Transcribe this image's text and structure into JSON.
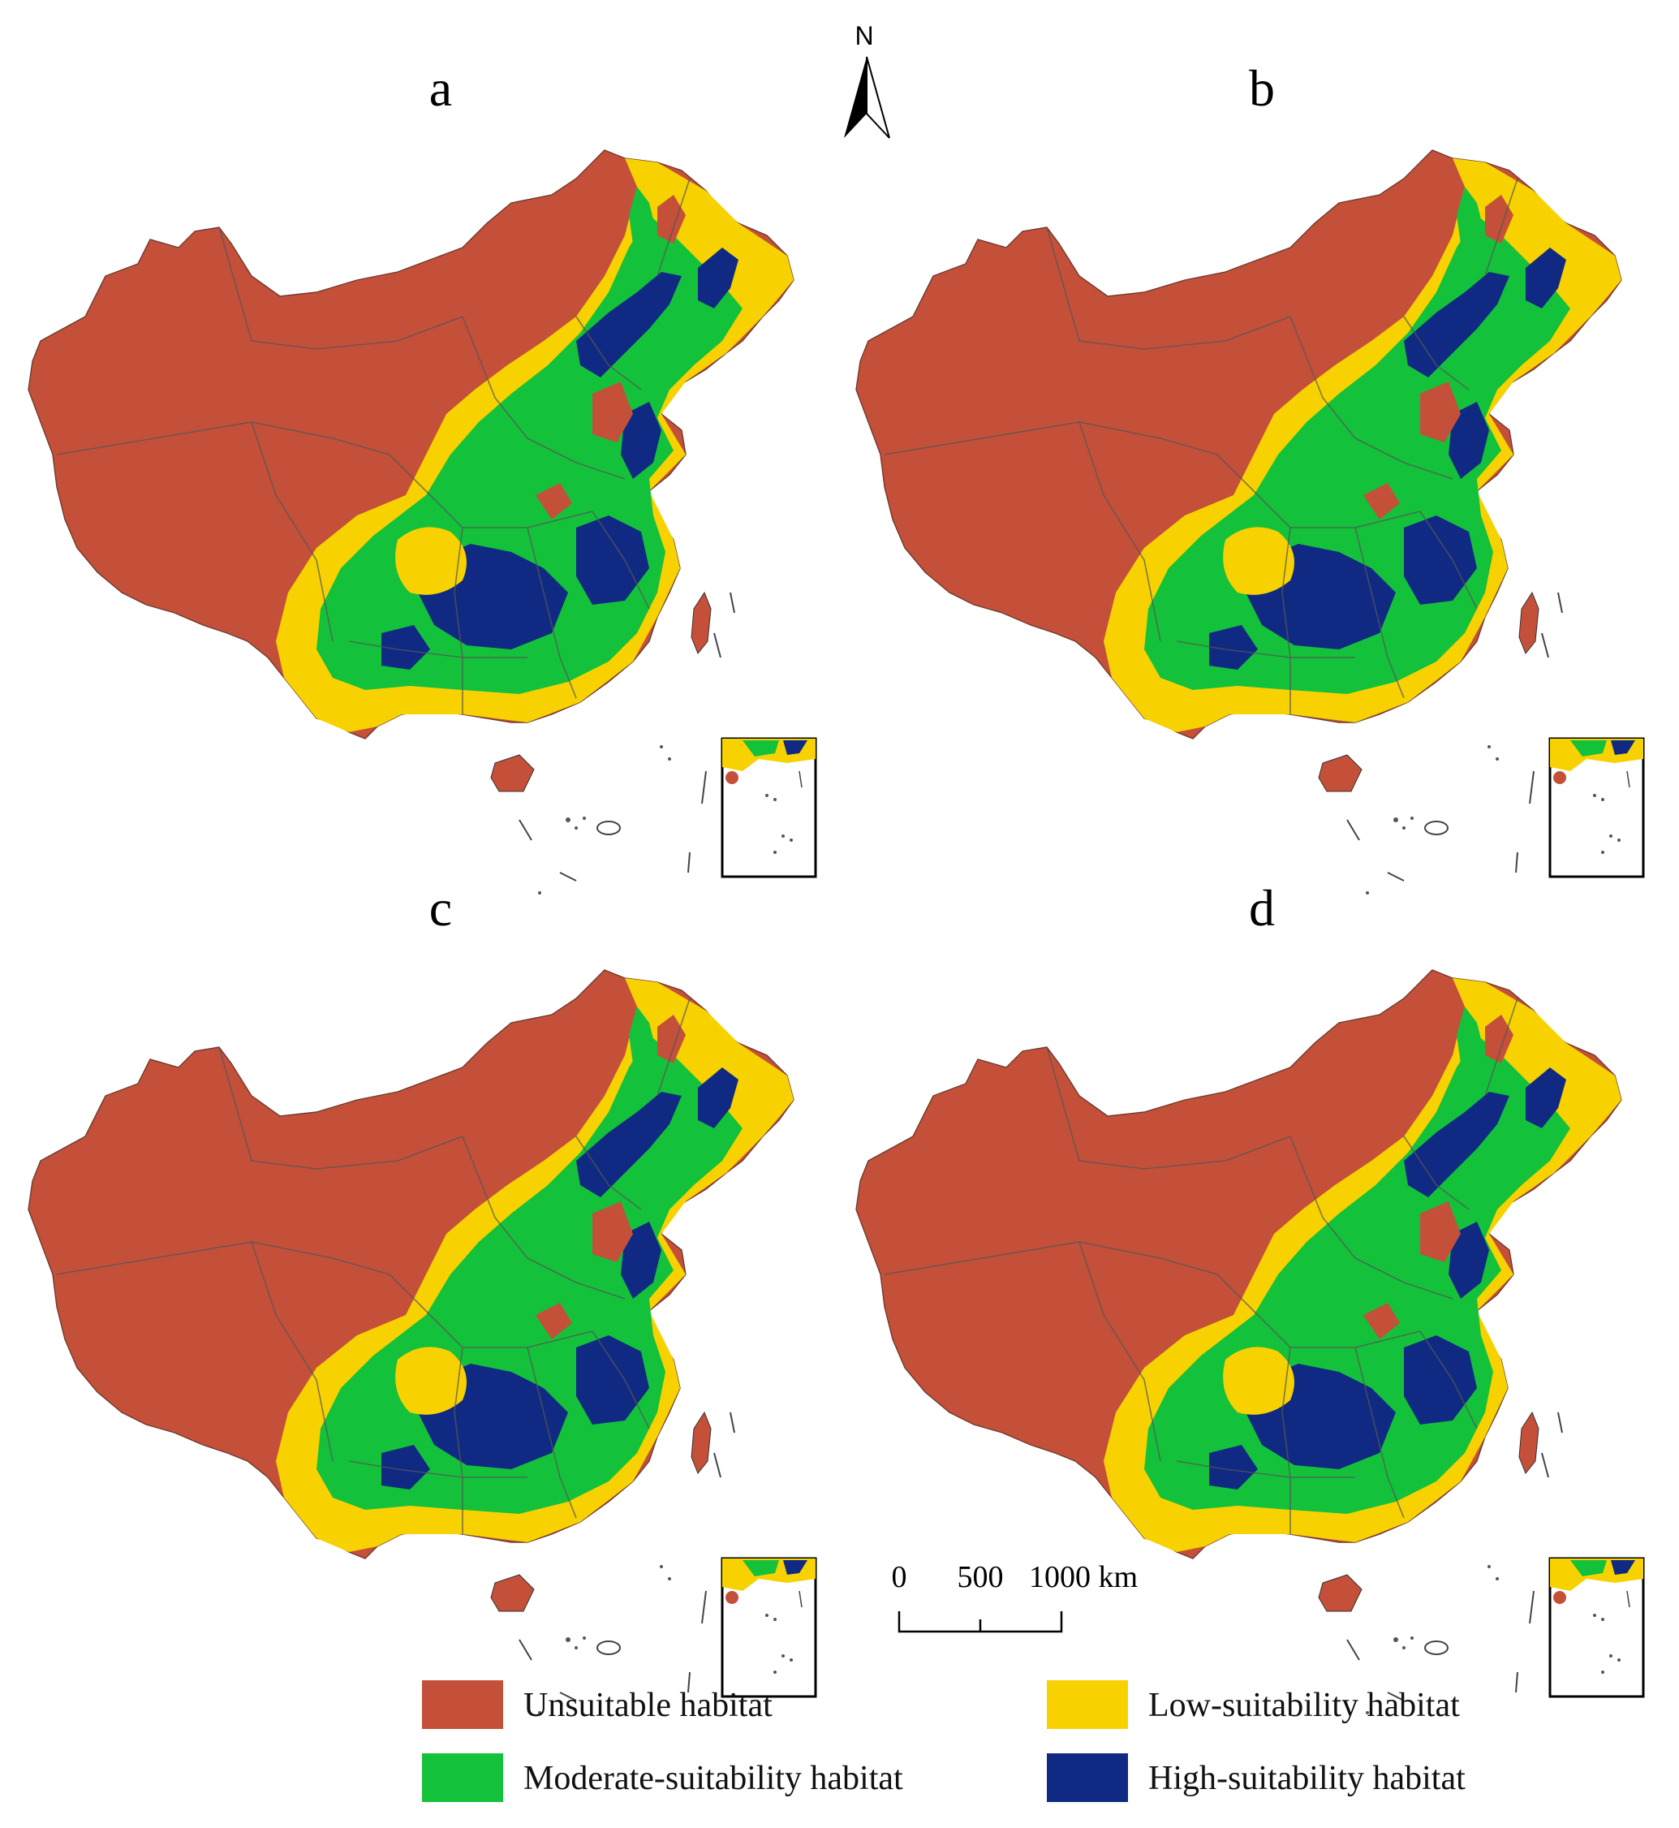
{
  "panels": [
    {
      "label": "a"
    },
    {
      "label": "b"
    },
    {
      "label": "c"
    },
    {
      "label": "d"
    }
  ],
  "north_arrow": {
    "letter": "N"
  },
  "scale_bar": {
    "ticks": [
      "0",
      "500",
      "1000 km"
    ]
  },
  "legend": [
    {
      "label": "Unsuitable habitat",
      "color": "#c4503a"
    },
    {
      "label": "Low-suitability habitat",
      "color": "#f7d200"
    },
    {
      "label": "Moderate-suitability habitat",
      "color": "#14c13a"
    },
    {
      "label": "High-suitability habitat",
      "color": "#102a83"
    }
  ],
  "colors": {
    "unsuitable": "#c4503a",
    "low": "#f7d200",
    "moderate": "#14c13a",
    "high": "#102a83"
  }
}
